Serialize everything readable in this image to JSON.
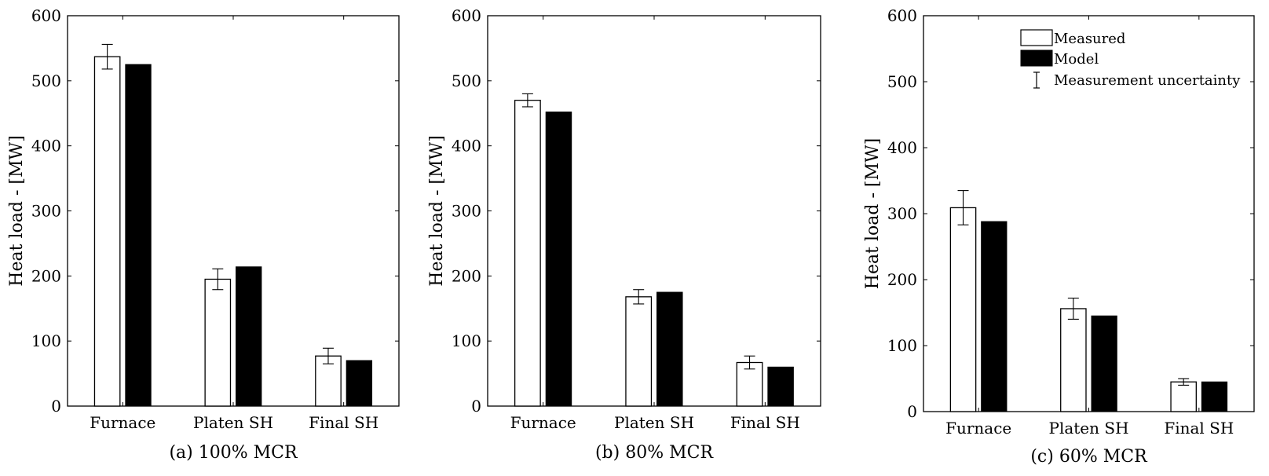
{
  "chart_data": [
    {
      "type": "bar",
      "caption": "(a) 100% MCR",
      "ylabel": "Heat load - [MW]",
      "ylim": [
        0,
        600
      ],
      "yticks": [
        "0",
        "100",
        "200",
        "300",
        "400",
        "500",
        "600"
      ],
      "categories": [
        "Furnace",
        "Platen SH",
        "Final SH"
      ],
      "series": [
        {
          "name": "Measured",
          "values": [
            537,
            195,
            77
          ],
          "error": [
            19,
            16,
            12
          ]
        },
        {
          "name": "Model",
          "values": [
            525,
            214,
            70
          ]
        }
      ],
      "legend": null
    },
    {
      "type": "bar",
      "caption": "(b) 80% MCR",
      "ylabel": "Heat load - [MW]",
      "ylim": [
        0,
        600
      ],
      "yticks": [
        "0",
        "100",
        "200",
        "300",
        "400",
        "500",
        "600"
      ],
      "categories": [
        "Furnace",
        "Platen SH",
        "Final SH"
      ],
      "series": [
        {
          "name": "Measured",
          "values": [
            470,
            168,
            67
          ],
          "error": [
            10,
            11,
            10
          ]
        },
        {
          "name": "Model",
          "values": [
            452,
            175,
            60
          ]
        }
      ],
      "legend": null
    },
    {
      "type": "bar",
      "caption": "(c) 60% MCR",
      "ylabel": "Heat load - [MW]",
      "ylim": [
        0,
        600
      ],
      "yticks": [
        "0",
        "100",
        "200",
        "300",
        "400",
        "500",
        "600"
      ],
      "categories": [
        "Furnace",
        "Platen SH",
        "Final SH"
      ],
      "series": [
        {
          "name": "Measured",
          "values": [
            309,
            156,
            45
          ],
          "error": [
            26,
            16,
            5
          ]
        },
        {
          "name": "Model",
          "values": [
            288,
            145,
            45
          ]
        }
      ],
      "legend": {
        "placement": "top-right",
        "entries": [
          "Measured",
          "Model",
          "Measurement uncertainty"
        ]
      }
    }
  ],
  "colors": {
    "measured_fill": "#ffffff",
    "model_fill": "#000000",
    "axis": "#000000"
  }
}
